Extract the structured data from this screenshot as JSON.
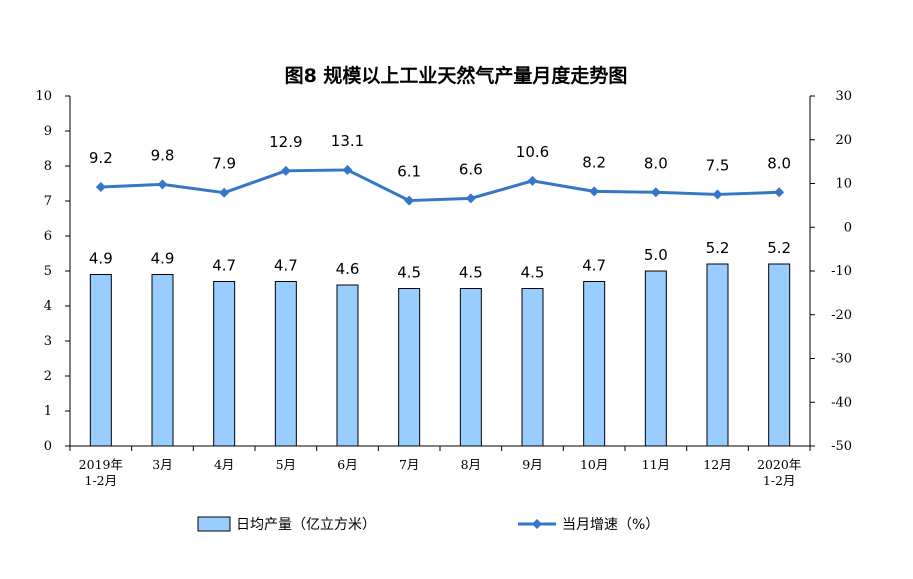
{
  "chart_data": {
    "type": "bar",
    "title": "图8  规模以上工业天然气产量月度走势图",
    "categories": [
      [
        "2019年",
        "1-2月"
      ],
      [
        "3月"
      ],
      [
        "4月"
      ],
      [
        "5月"
      ],
      [
        "6月"
      ],
      [
        "7月"
      ],
      [
        "8月"
      ],
      [
        "9月"
      ],
      [
        "10月"
      ],
      [
        "11月"
      ],
      [
        "12月"
      ],
      [
        "2020年",
        "1-2月"
      ]
    ],
    "series": [
      {
        "name": "日均产量（亿立方米）",
        "type": "bar",
        "axis": "left",
        "values": [
          4.9,
          4.9,
          4.7,
          4.7,
          4.6,
          4.5,
          4.5,
          4.5,
          4.7,
          5.0,
          5.2,
          5.2
        ],
        "labels": [
          "4.9",
          "4.9",
          "4.7",
          "4.7",
          "4.6",
          "4.5",
          "4.5",
          "4.5",
          "4.7",
          "5.0",
          "5.2",
          "5.2"
        ]
      },
      {
        "name": "当月增速（%）",
        "type": "line",
        "axis": "right",
        "values": [
          9.2,
          9.8,
          7.9,
          12.9,
          13.1,
          6.1,
          6.6,
          10.6,
          8.2,
          8.0,
          7.5,
          8.0
        ],
        "labels": [
          "9.2",
          "9.8",
          "7.9",
          "12.9",
          "13.1",
          "6.1",
          "6.6",
          "10.6",
          "8.2",
          "8.0",
          "7.5",
          "8.0"
        ]
      }
    ],
    "y_left": {
      "min": 0,
      "max": 10,
      "ticks": [
        "0",
        "1",
        "2",
        "3",
        "4",
        "5",
        "6",
        "7",
        "8",
        "9",
        "10"
      ]
    },
    "y_right": {
      "min": -50,
      "max": 30,
      "ticks": [
        "-50",
        "-40",
        "-30",
        "-20",
        "-10",
        "0",
        "10",
        "20",
        "30"
      ]
    },
    "legend_position": "bottom",
    "colors": {
      "bar_fill": "#99CCFF",
      "bar_stroke": "#000000",
      "line": "#3477C9",
      "axis": "#000000"
    }
  }
}
